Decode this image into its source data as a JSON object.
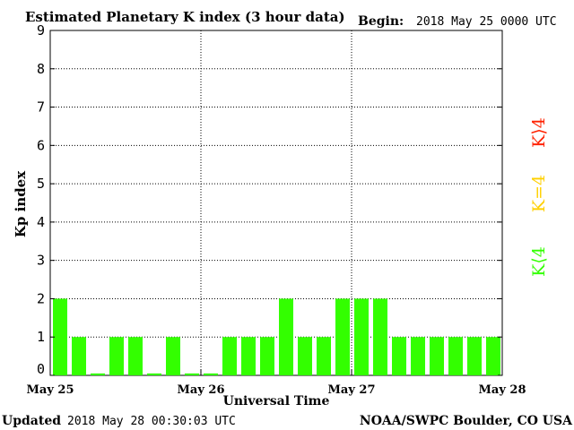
{
  "header": {
    "title": "Estimated Planetary K index (3 hour data)",
    "begin_label": "Begin:",
    "begin_value": "2018 May 25 0000 UTC"
  },
  "footer": {
    "updated_label": "Updated",
    "updated_value": "2018 May 28 00:30:03 UTC",
    "source": "NOAA/SWPC Boulder, CO USA"
  },
  "legend": {
    "high": {
      "text": "K⟩4",
      "color": "#ff2200"
    },
    "mid": {
      "text": "K=4",
      "color": "#ffd000"
    },
    "low": {
      "text": "K⟨4",
      "color": "#33ff00"
    }
  },
  "chart_data": {
    "type": "bar",
    "title": "Estimated Planetary K index (3 hour data)",
    "xlabel": "Universal Time",
    "ylabel": "Kp index",
    "ylim": [
      0,
      9
    ],
    "yticks": [
      0,
      1,
      2,
      3,
      4,
      5,
      6,
      7,
      8,
      9
    ],
    "xticks": [
      "May 25",
      "May 26",
      "May 27",
      "May 28"
    ],
    "grid": true,
    "bar_color": "#33ff00",
    "series": [
      {
        "values": [
          2,
          1,
          0.05,
          1,
          1,
          0.05,
          1,
          0.05,
          0.05,
          1,
          1,
          1,
          2,
          1,
          1,
          2,
          2,
          2,
          1,
          1,
          1,
          1,
          1,
          1
        ]
      }
    ]
  }
}
